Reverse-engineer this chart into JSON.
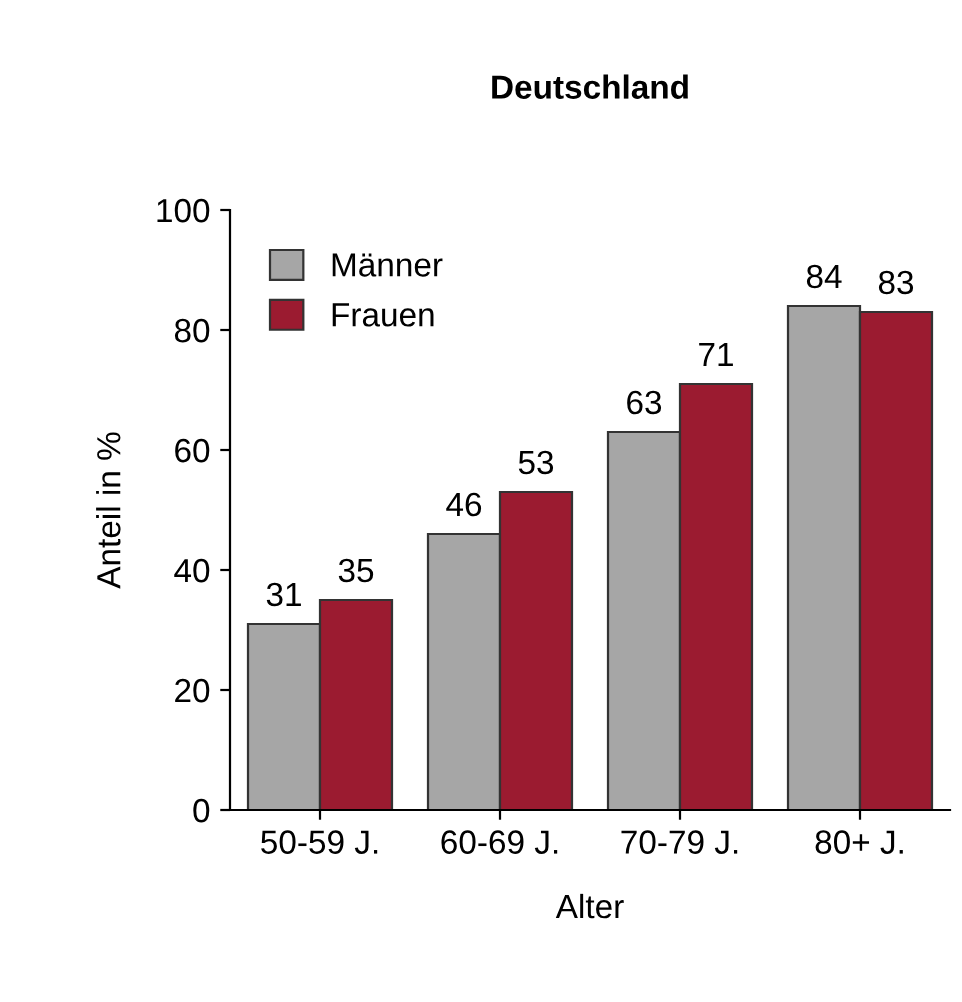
{
  "chart_data": {
    "type": "bar",
    "title": "Deutschland",
    "xlabel": "Alter",
    "ylabel": "Anteil in %",
    "categories": [
      "50-59 J.",
      "60-69 J.",
      "70-79 J.",
      "80+ J."
    ],
    "series": [
      {
        "name": "Männer",
        "color": "#a6a6a6",
        "values": [
          31,
          46,
          63,
          84
        ]
      },
      {
        "name": "Frauen",
        "color": "#9b1b30",
        "values": [
          35,
          53,
          71,
          83
        ]
      }
    ],
    "ylim": [
      0,
      100
    ],
    "yticks": [
      0,
      20,
      40,
      60,
      80,
      100
    ],
    "grid": false,
    "legend": "top left",
    "data_labels": true
  }
}
